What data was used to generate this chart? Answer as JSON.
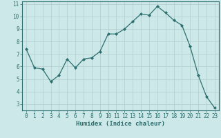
{
  "x": [
    0,
    1,
    2,
    3,
    4,
    5,
    6,
    7,
    8,
    9,
    10,
    11,
    12,
    13,
    14,
    15,
    16,
    17,
    18,
    19,
    20,
    21,
    22,
    23
  ],
  "y": [
    7.4,
    5.9,
    5.8,
    4.8,
    5.3,
    6.6,
    5.9,
    6.6,
    6.7,
    7.2,
    8.6,
    8.6,
    9.0,
    9.6,
    10.2,
    10.1,
    10.8,
    10.3,
    9.7,
    9.3,
    7.6,
    5.3,
    3.6,
    2.7
  ],
  "line_color": "#2d6e6e",
  "marker": "D",
  "marker_size": 2,
  "bg_color": "#cce8e8",
  "grid_color": "#b0cccc",
  "xlabel": "Humidex (Indice chaleur)",
  "ylim": [
    2.5,
    11.2
  ],
  "xlim": [
    -0.5,
    23.5
  ],
  "yticks": [
    3,
    4,
    5,
    6,
    7,
    8,
    9,
    10,
    11
  ],
  "xticks": [
    0,
    1,
    2,
    3,
    4,
    5,
    6,
    7,
    8,
    9,
    10,
    11,
    12,
    13,
    14,
    15,
    16,
    17,
    18,
    19,
    20,
    21,
    22,
    23
  ],
  "tick_fontsize": 5.5,
  "label_fontsize": 6.5
}
